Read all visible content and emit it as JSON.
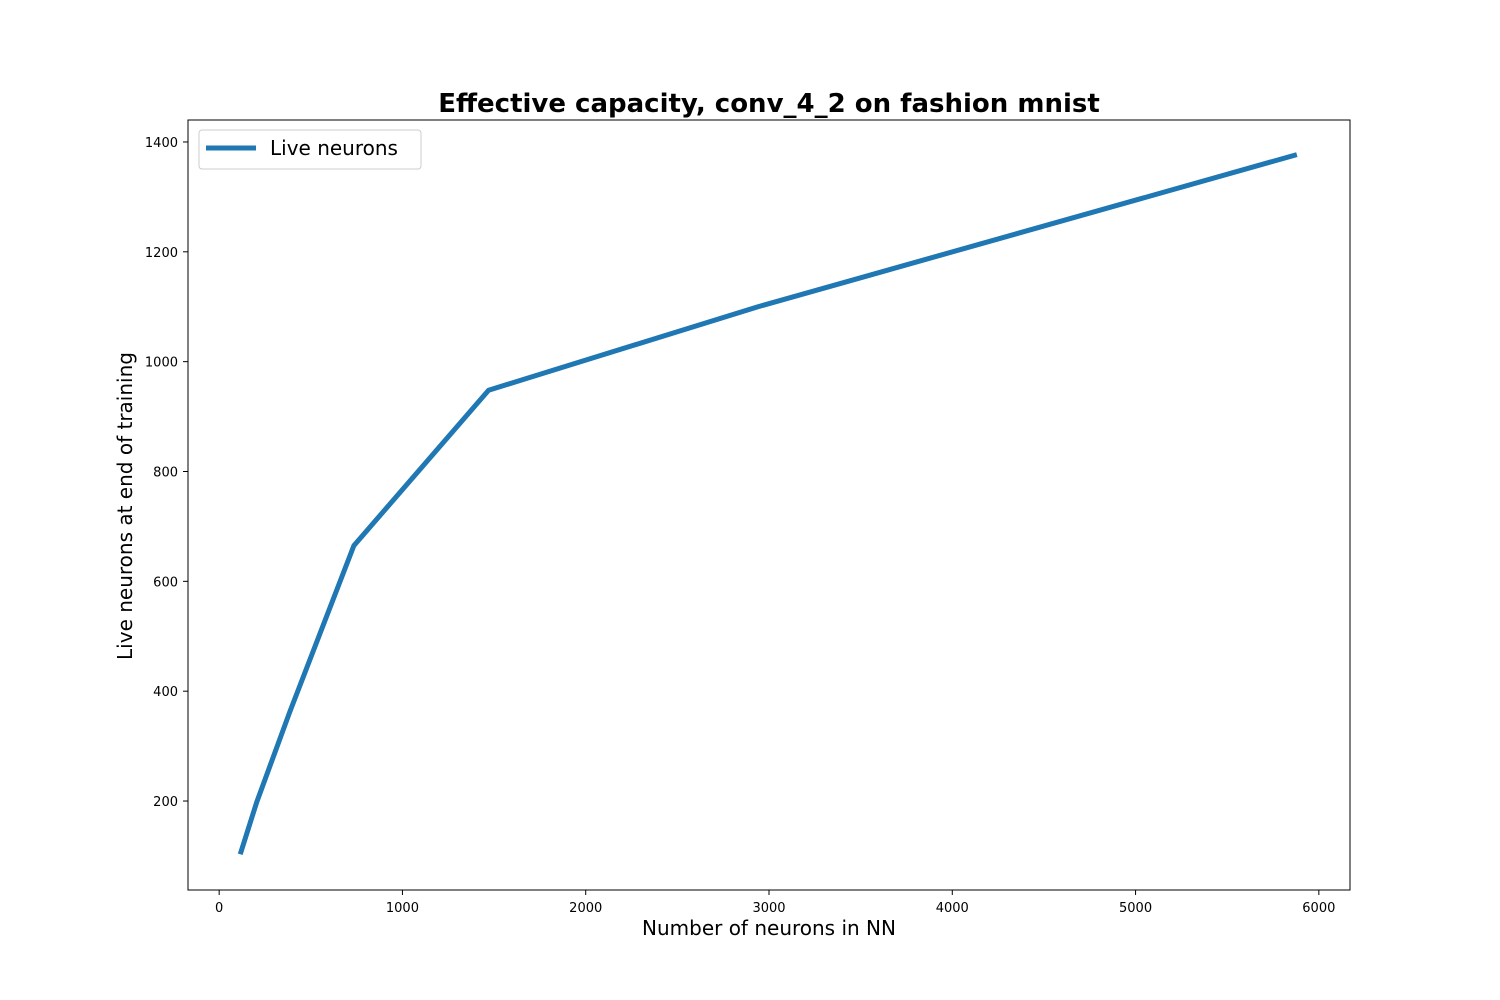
{
  "chart_data": {
    "type": "line",
    "title": "Effective capacity, conv_4_2 on fashion mnist",
    "xlabel": "Number of neurons in NN",
    "ylabel": "Live neurons at end of training",
    "xlim": [
      -170,
      6170
    ],
    "ylim": [
      38,
      1440
    ],
    "xticks": [
      0,
      1000,
      2000,
      3000,
      4000,
      5000,
      6000
    ],
    "yticks": [
      200,
      400,
      600,
      800,
      1000,
      1200,
      1400
    ],
    "grid": false,
    "legend_position": "top-left",
    "series": [
      {
        "name": "Live neurons",
        "color": "#1f77b4",
        "x": [
          115,
          205,
          385,
          735,
          1470,
          2940,
          5880
        ],
        "y": [
          103,
          198,
          362,
          665,
          948,
          1100,
          1377
        ]
      }
    ]
  }
}
